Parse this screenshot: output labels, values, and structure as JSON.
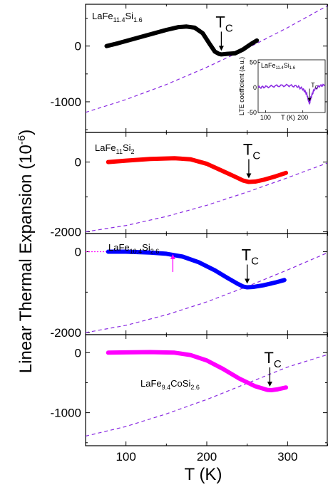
{
  "chart_data": {
    "type": "line",
    "xlabel": "T (K)",
    "ylabel": "Linear Thermal Expansion (10",
    "ylabel_exp": "-6",
    "ylabel_close": ")",
    "xlim": [
      50,
      350
    ],
    "xticks": [
      100,
      200,
      300
    ],
    "tc_text": "T",
    "tc_sub": "C",
    "dashed_color": "#8a2be2",
    "panels": [
      {
        "id": "p1",
        "sample_main": "LaFe",
        "sample_parts": [
          {
            "t": "11.4",
            "sub": true
          },
          {
            "t": "Si",
            "sub": false
          },
          {
            "t": "1.6",
            "sub": true
          }
        ],
        "color": "#000000",
        "ylim": [
          -1550,
          750
        ],
        "yticks": [
          0,
          -1000
        ],
        "yticklabels": [
          "0",
          "-1000"
        ],
        "tc_x": 218,
        "data_x": [
          76,
          90,
          110,
          130,
          150,
          165,
          175,
          185,
          195,
          203,
          210,
          215,
          218,
          225,
          235,
          245,
          255,
          262
        ],
        "data_y": [
          0,
          50,
          130,
          210,
          290,
          340,
          350,
          330,
          230,
          50,
          -100,
          -140,
          -150,
          -140,
          -130,
          -60,
          40,
          100
        ],
        "dashed_x": [
          50,
          100,
          150,
          200,
          250,
          300,
          350
        ],
        "dashed_y": [
          -1190,
          -960,
          -690,
          -380,
          -40,
          330,
          730
        ],
        "inset": {
          "title_main": "LaFe",
          "title_parts": [
            {
              "t": "11.4",
              "sub": true
            },
            {
              "t": "Si",
              "sub": false
            },
            {
              "t": "1.6",
              "sub": true
            }
          ],
          "ylabel": "LTE coefficient (a.u.)",
          "xlabel": "T (K)",
          "xlim": [
            80,
            260
          ],
          "ylim": [
            -50,
            55
          ],
          "xticks": [
            100,
            200
          ],
          "yticks": [
            -50,
            0,
            50
          ],
          "yticklabels": [
            "-50",
            "0",
            "50"
          ],
          "xticklabels": [
            "100",
            "200"
          ],
          "color": "#8a2be2",
          "tc_x": 218,
          "data_x": [
            80,
            100,
            130,
            160,
            185,
            200,
            210,
            215,
            218,
            222,
            230,
            245,
            260
          ],
          "data_y": [
            0,
            1,
            3,
            4,
            2,
            -3,
            -12,
            -25,
            -32,
            -20,
            -5,
            3,
            5
          ]
        }
      },
      {
        "id": "p2",
        "sample_main": "LaFe",
        "sample_parts": [
          {
            "t": "11",
            "sub": true
          },
          {
            "t": "Si",
            "sub": false
          },
          {
            "t": "2",
            "sub": true
          }
        ],
        "color": "#ff0000",
        "ylim": [
          -2050,
          850
        ],
        "yticks": [
          0,
          -2000
        ],
        "yticklabels": [
          "0",
          "-2000"
        ],
        "tc_x": 252,
        "data_x": [
          78,
          100,
          130,
          160,
          180,
          200,
          220,
          235,
          245,
          252,
          260,
          270,
          285,
          298
        ],
        "data_y": [
          0,
          40,
          90,
          110,
          80,
          -50,
          -260,
          -420,
          -530,
          -570,
          -560,
          -510,
          -410,
          -310
        ],
        "dashed_x": [
          50,
          100,
          150,
          200,
          250,
          300,
          350
        ],
        "dashed_y": [
          -2000,
          -1820,
          -1560,
          -1240,
          -860,
          -450,
          -20
        ]
      },
      {
        "id": "p3",
        "sample_main": "LaFe",
        "sample_parts": [
          {
            "t": "10.4",
            "sub": true
          },
          {
            "t": "Si",
            "sub": false
          },
          {
            "t": "2.6",
            "sub": true
          }
        ],
        "color": "#0000ff",
        "ylim": [
          -2050,
          450
        ],
        "yticks": [
          0,
          -2000
        ],
        "yticklabels": [
          "0",
          "-2000"
        ],
        "tc_x": 250,
        "extra_arrow_x": 158,
        "data_x": [
          78,
          100,
          130,
          150,
          170,
          190,
          210,
          225,
          238,
          245,
          250,
          258,
          270,
          285,
          296
        ],
        "data_y": [
          0,
          0,
          -20,
          -50,
          -120,
          -260,
          -460,
          -640,
          -790,
          -860,
          -880,
          -870,
          -830,
          -760,
          -700
        ],
        "leading_x": [
          50,
          78
        ],
        "leading_y": [
          0,
          0
        ],
        "dashed_x": [
          50,
          100,
          150,
          200,
          250,
          300,
          350
        ],
        "dashed_y": [
          -2000,
          -1820,
          -1560,
          -1240,
          -860,
          -450,
          -20
        ]
      },
      {
        "id": "p4",
        "sample_main": "LaFe",
        "sample_parts": [
          {
            "t": "9.4",
            "sub": true
          },
          {
            "t": "CoSi",
            "sub": false
          },
          {
            "t": "2.6",
            "sub": true
          }
        ],
        "color": "#ff00ff",
        "ylim": [
          -1550,
          300
        ],
        "yticks": [
          0,
          -1000
        ],
        "yticklabels": [
          "0",
          "-1000"
        ],
        "tc_x": 278,
        "data_x": [
          78,
          100,
          130,
          160,
          180,
          200,
          220,
          240,
          260,
          275,
          280,
          288,
          298
        ],
        "data_y": [
          0,
          5,
          10,
          0,
          -40,
          -130,
          -270,
          -430,
          -560,
          -620,
          -625,
          -610,
          -580
        ],
        "dashed_x": [
          50,
          100,
          150,
          200,
          250,
          300,
          350
        ],
        "dashed_y": [
          -1390,
          -1230,
          -1020,
          -780,
          -510,
          -240,
          -30
        ]
      }
    ]
  }
}
